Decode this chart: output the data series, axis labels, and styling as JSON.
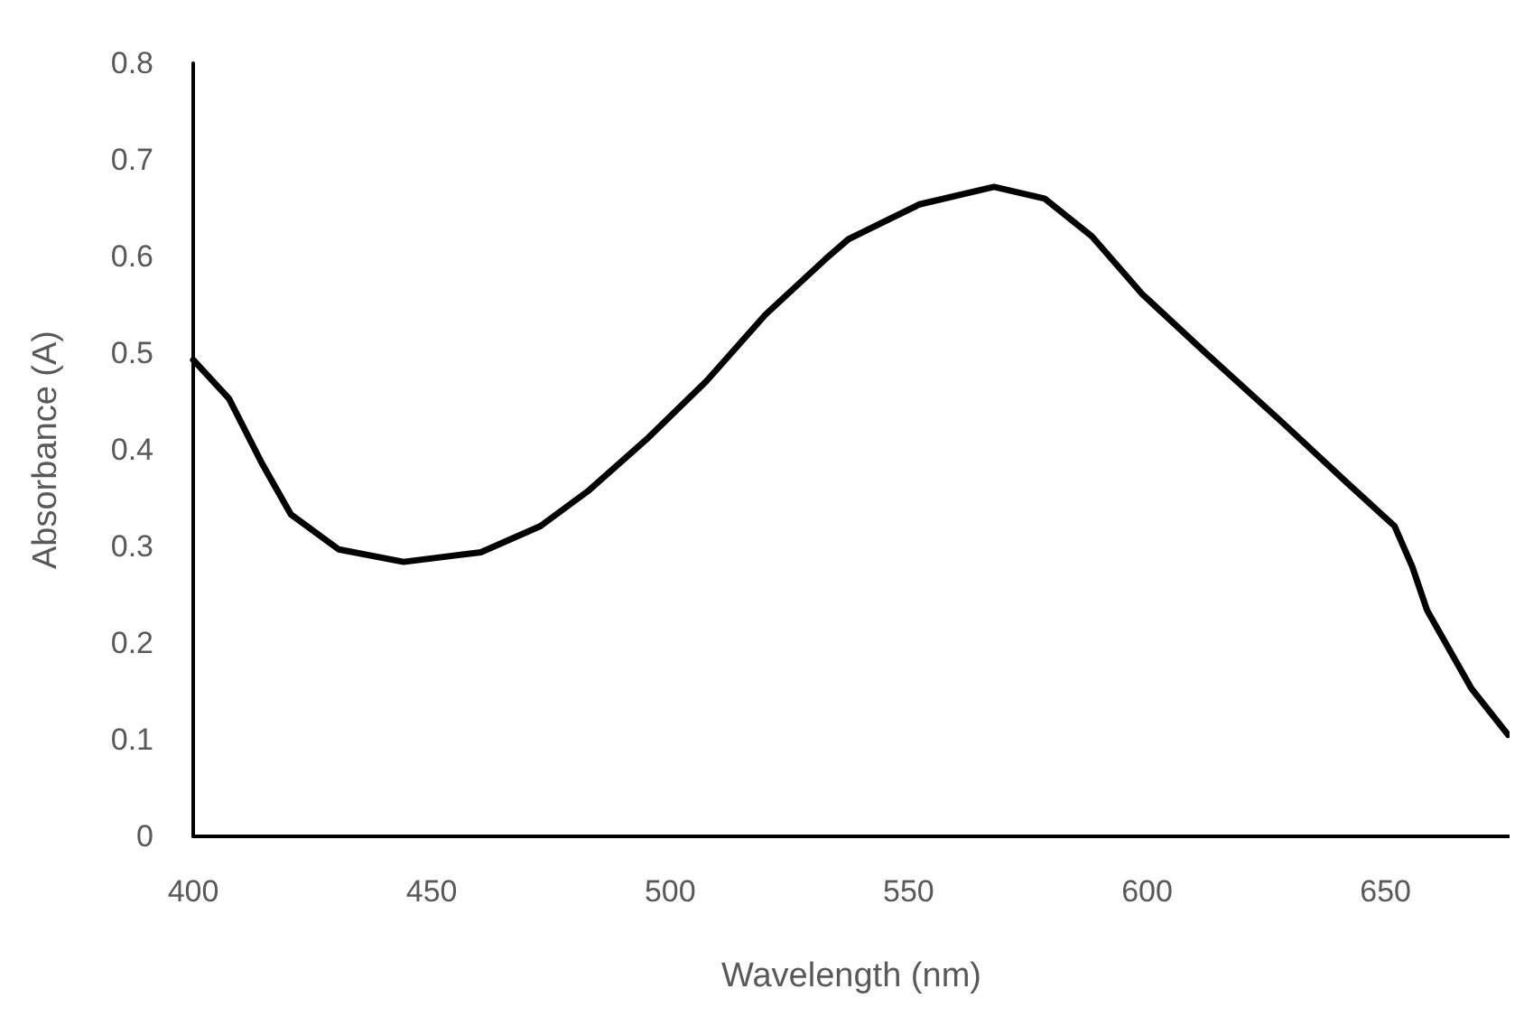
{
  "chart_data": {
    "type": "line",
    "xlabel": "Wavelength (nm)",
    "ylabel": "Absorbance (A)",
    "x": [
      400,
      407.5,
      414.3,
      420.5,
      430.5,
      444.1,
      460.3,
      472.8,
      482.7,
      495.1,
      507.6,
      520,
      532.5,
      537.4,
      552.3,
      567.9,
      578.5,
      588.4,
      599,
      612.1,
      628.2,
      641.9,
      651.9,
      655.6,
      658.7,
      668,
      675.7
    ],
    "series": [
      {
        "color": "#000000",
        "values": [
          0.493,
          0.453,
          0.387,
          0.333,
          0.297,
          0.284,
          0.294,
          0.321,
          0.357,
          0.411,
          0.471,
          0.54,
          0.597,
          0.618,
          0.654,
          0.672,
          0.66,
          0.621,
          0.561,
          0.501,
          0.429,
          0.366,
          0.321,
          0.279,
          0.234,
          0.153,
          0.105
        ]
      }
    ],
    "xlim": [
      400,
      676
    ],
    "xticks": [
      400,
      450,
      500,
      550,
      600,
      650
    ],
    "ylim": [
      0,
      0.8
    ],
    "yticks": [
      0,
      0.1,
      0.2,
      0.3,
      0.4,
      0.5,
      0.6,
      0.7,
      0.8
    ],
    "grid": false,
    "marker": "none",
    "line_style": "solid"
  }
}
